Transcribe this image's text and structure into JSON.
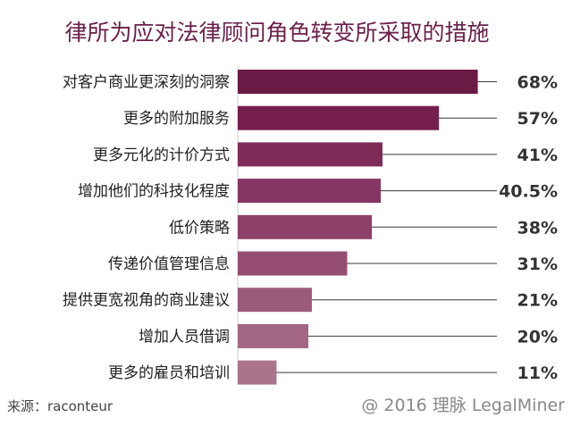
{
  "chart_data": {
    "type": "bar",
    "orientation": "horizontal",
    "title": "律所为应对法律顾问角色转变所采取的措施",
    "categories": [
      "对客户商业更深刻的洞察",
      "更多的附加服务",
      "更多元化的计价方式",
      "增加他们的科技化程度",
      "低价策略",
      "传递价值管理信息",
      "提供更宽视角的商业建议",
      "增加人员借调",
      "更多的雇员和培训"
    ],
    "values": [
      68,
      57,
      41,
      40.5,
      38,
      31,
      21,
      20,
      11
    ],
    "value_labels": [
      "68%",
      "57%",
      "41%",
      "40.5%",
      "38%",
      "31%",
      "21%",
      "20%",
      "11%"
    ],
    "unit": "%",
    "xlim": [
      0,
      100
    ],
    "grid": false,
    "bar_colors": [
      "#6b1a45",
      "#761f4f",
      "#7f2b58",
      "#863662",
      "#8d4169",
      "#954e72",
      "#9c5a7b",
      "#a36784",
      "#aa748d"
    ]
  },
  "footer": {
    "source": "来源：raconteur",
    "credit": "@ 2016 理脉 LegalMiner"
  }
}
